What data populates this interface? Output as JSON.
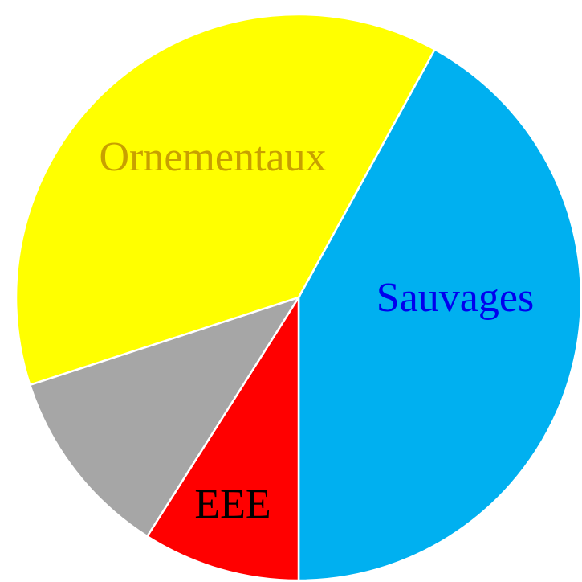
{
  "chart_data": {
    "type": "pie",
    "categories": [
      "Sauvages",
      "EEE",
      null,
      "Ornementaux"
    ],
    "values": [
      42,
      9,
      11,
      38
    ],
    "colors": [
      "#00b0f0",
      "#ff0000",
      "#a6a6a6",
      "#ffff00"
    ],
    "label_colors": [
      "#0000ee",
      "#000000",
      null,
      "#c8a000"
    ]
  }
}
